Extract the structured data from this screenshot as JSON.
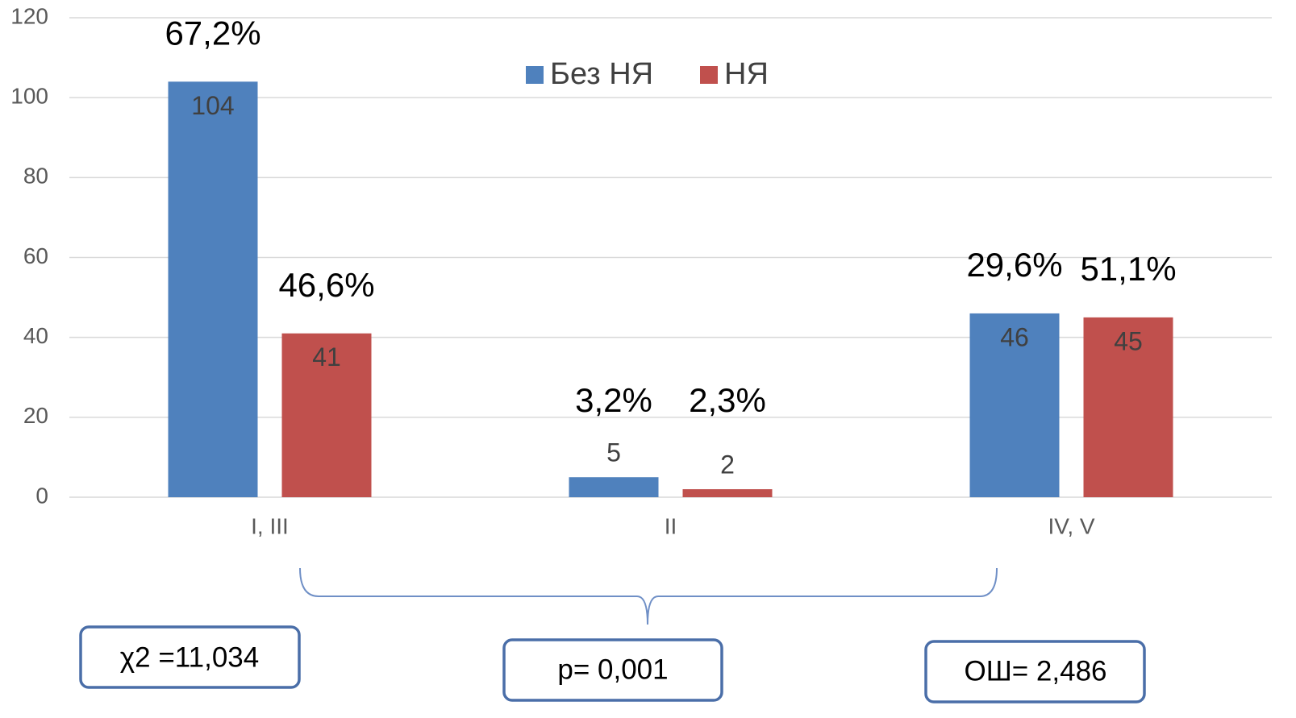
{
  "chart_data": {
    "type": "bar",
    "categories": [
      "I, III",
      "II",
      "IV, V"
    ],
    "series": [
      {
        "name": "Без НЯ",
        "color": "#4f81bd",
        "values": [
          104,
          5,
          46
        ],
        "percent_labels": [
          "67,2%",
          "3,2%",
          "29,6%"
        ]
      },
      {
        "name": "НЯ",
        "color": "#c0504d",
        "values": [
          41,
          2,
          45
        ],
        "percent_labels": [
          "46,6%",
          "2,3%",
          "51,1%"
        ]
      }
    ],
    "ylim": [
      0,
      120
    ],
    "yticks": [
      0,
      20,
      40,
      60,
      80,
      100,
      120
    ],
    "grid": true,
    "legend": "top",
    "annotations": [
      "χ2 =11,034",
      "p= 0,001",
      "ОШ= 2,486"
    ]
  }
}
